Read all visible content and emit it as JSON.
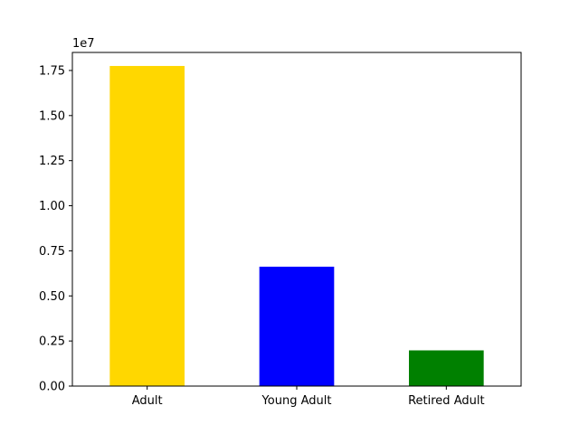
{
  "chart_data": {
    "type": "bar",
    "categories": [
      "Adult",
      "Young Adult",
      "Retired Adult"
    ],
    "values": [
      17750000,
      6620000,
      1980000
    ],
    "colors": [
      "#ffd700",
      "#0000ff",
      "#008000"
    ],
    "title": "",
    "xlabel": "",
    "ylabel": "",
    "ylim": [
      0,
      18500000
    ],
    "y_tick_values": [
      0,
      2500000,
      5000000,
      7500000,
      10000000,
      12500000,
      15000000,
      17500000
    ],
    "y_tick_labels": [
      "0.00",
      "0.25",
      "0.50",
      "0.75",
      "1.00",
      "1.25",
      "1.50",
      "1.75"
    ],
    "y_offset_text": "1e7",
    "grid": false,
    "legend": "none"
  }
}
